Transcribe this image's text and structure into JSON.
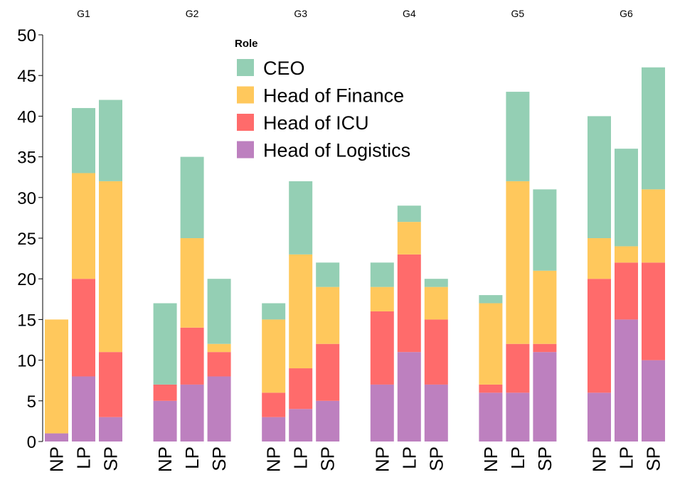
{
  "chart_data": {
    "type": "bar",
    "stacked": true,
    "facets": [
      "G1",
      "G2",
      "G3",
      "G4",
      "G5",
      "G6"
    ],
    "categories": [
      "NP",
      "LP",
      "SP"
    ],
    "ylim": [
      0,
      50
    ],
    "yticks": [
      0,
      5,
      10,
      15,
      20,
      25,
      30,
      35,
      40,
      45,
      50
    ],
    "legend": {
      "title": "Role",
      "placement": "top-center"
    },
    "series": [
      {
        "name": "Head of Logistics",
        "color": "#bd80bf",
        "values": [
          [
            1,
            8,
            3
          ],
          [
            5,
            7,
            8
          ],
          [
            3,
            4,
            5
          ],
          [
            7,
            11,
            7
          ],
          [
            6,
            6,
            11
          ],
          [
            6,
            15,
            10
          ]
        ]
      },
      {
        "name": "Head of ICU",
        "color": "#ff6b6b",
        "values": [
          [
            0,
            12,
            8
          ],
          [
            2,
            7,
            3
          ],
          [
            3,
            5,
            7
          ],
          [
            9,
            12,
            8
          ],
          [
            1,
            6,
            1
          ],
          [
            14,
            7,
            12
          ]
        ]
      },
      {
        "name": "Head of Finance",
        "color": "#ffc85c",
        "values": [
          [
            14,
            13,
            21
          ],
          [
            0,
            11,
            1
          ],
          [
            9,
            14,
            7
          ],
          [
            3,
            4,
            4
          ],
          [
            10,
            20,
            9
          ],
          [
            5,
            2,
            9
          ]
        ]
      },
      {
        "name": "CEO",
        "color": "#94cfb4",
        "values": [
          [
            0,
            8,
            10
          ],
          [
            10,
            10,
            8
          ],
          [
            2,
            9,
            3
          ],
          [
            3,
            2,
            1
          ],
          [
            1,
            11,
            10
          ],
          [
            15,
            12,
            15
          ]
        ]
      }
    ],
    "legend_order": [
      "CEO",
      "Head of Finance",
      "Head of ICU",
      "Head of Logistics"
    ]
  }
}
